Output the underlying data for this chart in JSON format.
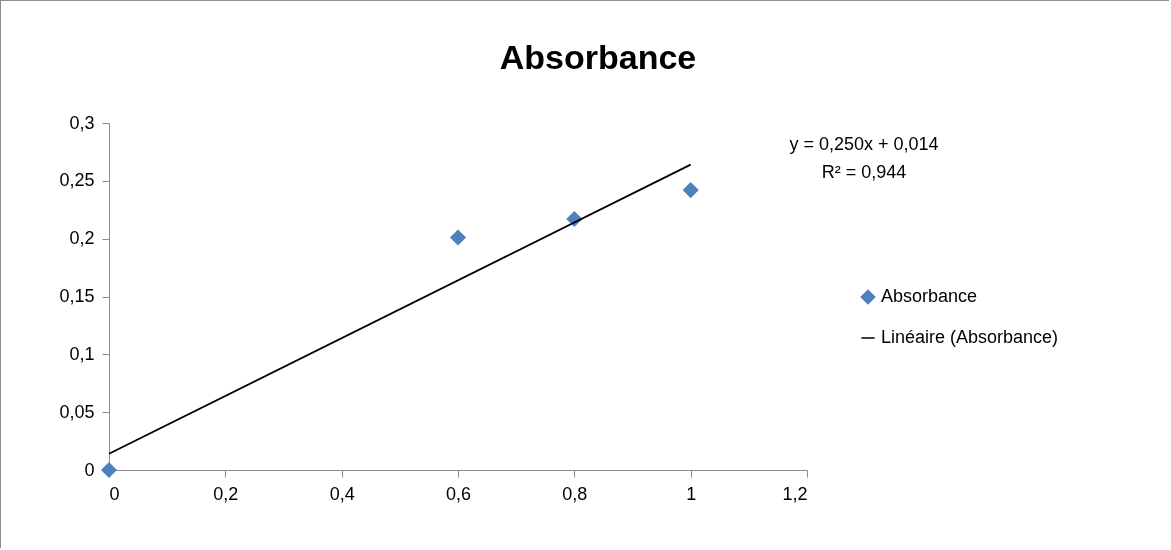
{
  "chart_data": {
    "type": "scatter",
    "title": "Absorbance",
    "series": [
      {
        "name": "Absorbance",
        "color": "#4f81bd",
        "marker": "diamond",
        "x": [
          0,
          0.6,
          0.8,
          1
        ],
        "values": [
          0,
          0.201,
          0.217,
          0.242
        ]
      },
      {
        "name": "Linéaire (Absorbance)",
        "type": "line",
        "color": "#000000",
        "line_style": "solid",
        "x": [
          0,
          1
        ],
        "values": [
          0.014,
          0.264
        ]
      }
    ],
    "xlim": [
      0,
      1.2
    ],
    "ylim": [
      0,
      0.3
    ],
    "xticks": [
      0,
      {
        "value": 0.2,
        "label": "0,2"
      },
      {
        "value": 0.4,
        "label": "0,4"
      },
      {
        "value": 0.6,
        "label": "0,6"
      },
      {
        "value": 0.8,
        "label": "0,8"
      },
      1,
      {
        "value": 1.2,
        "label": "1,2"
      }
    ],
    "yticks": [
      0,
      {
        "value": 0.05,
        "label": "0,05"
      },
      {
        "value": 0.1,
        "label": "0,1"
      },
      {
        "value": 0.15,
        "label": "0,15"
      },
      {
        "value": 0.2,
        "label": "0,2"
      },
      {
        "value": 0.25,
        "label": "0,25"
      },
      {
        "value": 0.3,
        "label": "0,3"
      }
    ],
    "annotations": [
      "y = 0,250x + 0,014",
      "R² = 0,944"
    ],
    "grid": false,
    "legend": "right"
  }
}
